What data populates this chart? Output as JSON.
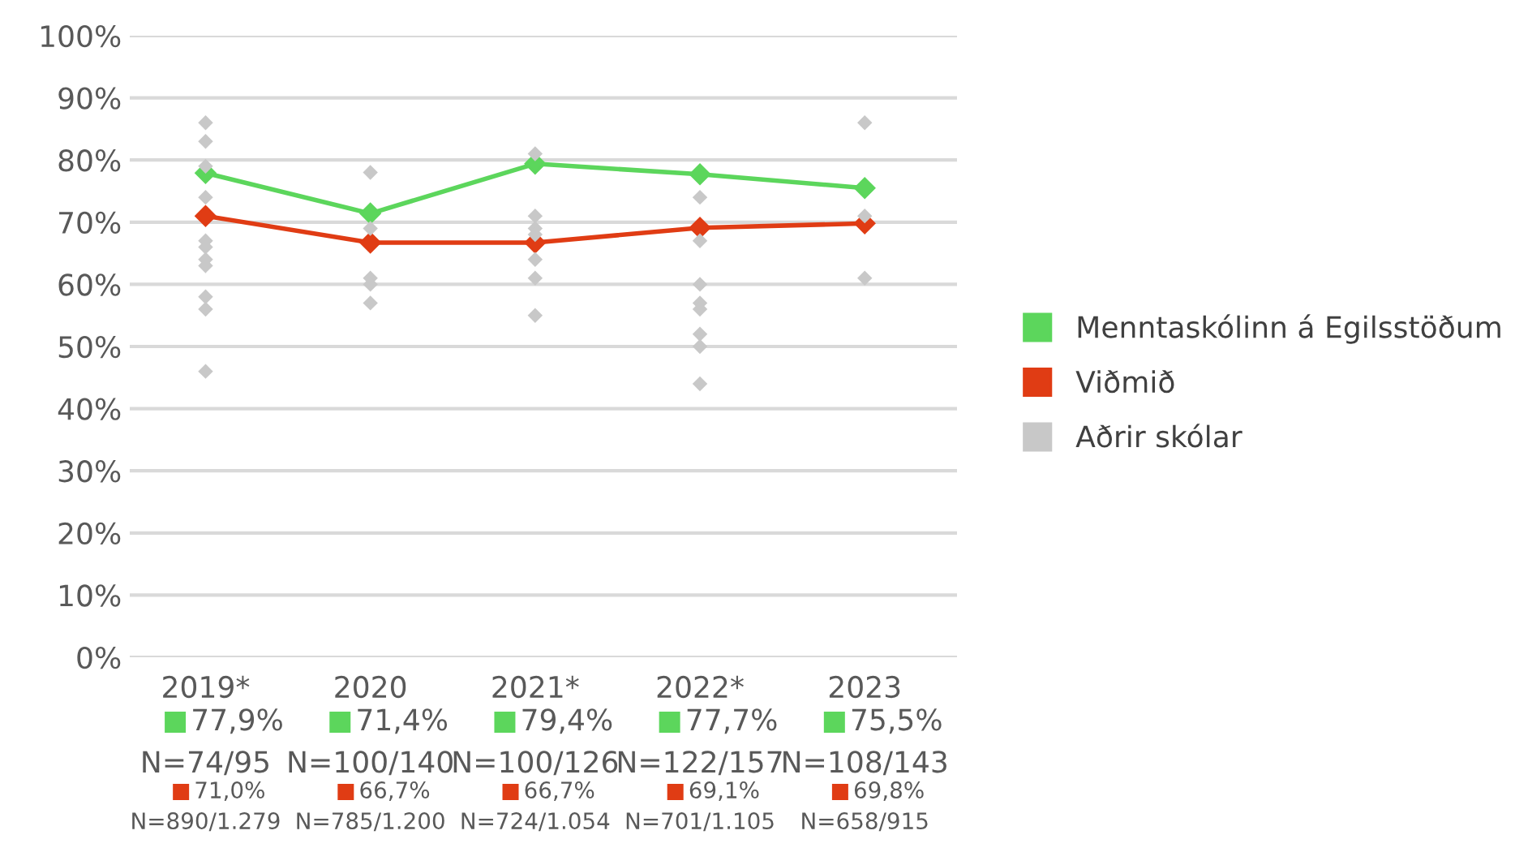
{
  "chart_data": {
    "type": "line",
    "categories": [
      "2019*",
      "2020",
      "2021*",
      "2022*",
      "2023"
    ],
    "ylim": [
      0,
      100
    ],
    "yticks": [
      {
        "value": 0,
        "label": "0%"
      },
      {
        "value": 10,
        "label": "10%"
      },
      {
        "value": 20,
        "label": "20%"
      },
      {
        "value": 30,
        "label": "30%"
      },
      {
        "value": 40,
        "label": "40%"
      },
      {
        "value": 50,
        "label": "50%"
      },
      {
        "value": 60,
        "label": "60%"
      },
      {
        "value": 70,
        "label": "70%"
      },
      {
        "value": 80,
        "label": "80%"
      },
      {
        "value": 90,
        "label": "90%"
      },
      {
        "value": 100,
        "label": "100%"
      }
    ],
    "grid": "y",
    "legend": "right",
    "marker": "diamond",
    "line_style": "solid",
    "series": [
      {
        "name": "Menntaskólinn á Egilsstöðum",
        "color": "#5cd65c",
        "values": [
          77.9,
          71.4,
          79.4,
          77.7,
          75.5
        ],
        "value_labels": [
          "77,9%\nN=74/95",
          "71,4%\nN=100/140",
          "79,4%\nN=100/126",
          "77,7%\nN=122/157",
          "75,5%\nN=108/143"
        ]
      },
      {
        "name": "Viðmið",
        "color": "#e03c14",
        "values": [
          71.0,
          66.7,
          66.7,
          69.1,
          69.8
        ],
        "value_labels": [
          "71,0%\nN=890/1.279",
          "66,7%\nN=785/1.200",
          "66,7%\nN=724/1.054",
          "69,1%\nN=701/1.105",
          "69,8%\nN=658/915"
        ]
      },
      {
        "name": "Aðrir skólar",
        "type": "scatter",
        "color": "#c8c8c8",
        "values": [
          86,
          78,
          81,
          74,
          86
        ]
      },
      {
        "type": "scatter",
        "color": "#c8c8c8",
        "values": [
          83,
          69,
          71,
          67,
          71
        ]
      },
      {
        "type": "scatter",
        "color": "#c8c8c8",
        "values": [
          79,
          61,
          69,
          60,
          61
        ]
      },
      {
        "type": "scatter",
        "color": "#c8c8c8",
        "values": [
          74,
          60,
          68,
          57,
          null
        ]
      },
      {
        "type": "scatter",
        "color": "#c8c8c8",
        "values": [
          67,
          57,
          64,
          56,
          null
        ]
      },
      {
        "type": "scatter",
        "color": "#c8c8c8",
        "values": [
          66,
          null,
          61,
          52,
          null
        ]
      },
      {
        "type": "scatter",
        "color": "#c8c8c8",
        "values": [
          64,
          null,
          55,
          50,
          null
        ]
      },
      {
        "type": "scatter",
        "color": "#c8c8c8",
        "values": [
          63,
          null,
          null,
          44,
          null
        ]
      },
      {
        "type": "scatter",
        "color": "#c8c8c8",
        "values": [
          58,
          null,
          null,
          null,
          null
        ]
      },
      {
        "type": "scatter",
        "color": "#c8c8c8",
        "values": [
          56,
          null,
          null,
          null,
          null
        ]
      },
      {
        "type": "scatter",
        "color": "#c8c8c8",
        "values": [
          46,
          null,
          null,
          null,
          null
        ]
      }
    ]
  }
}
